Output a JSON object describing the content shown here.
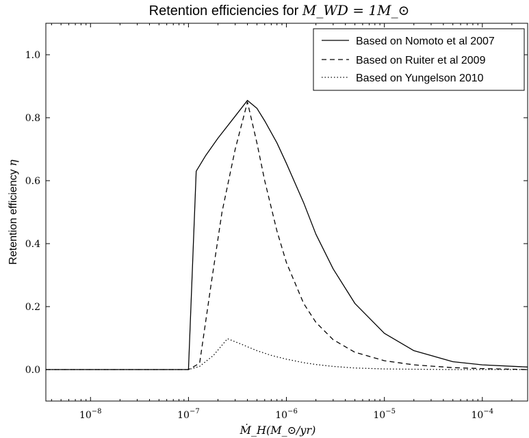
{
  "chart_data": {
    "type": "line",
    "title": "Retention efficiencies for M_WD = 1M_⊙",
    "title_prefix": "Retention efficiencies for ",
    "title_math": "M_WD = 1M_⊙",
    "xlabel": "Ṁ_H(M_⊙/yr)",
    "ylabel": "Retention efficiency η",
    "ylabel_text": "Retention efficiency ",
    "ylabel_math": "η",
    "x_scale": "log",
    "xlim": [
      3.5e-09,
      0.00029
    ],
    "ylim": [
      -0.1,
      1.1
    ],
    "x_ticks": [
      {
        "value": 1e-08,
        "label": "10−8"
      },
      {
        "value": 1e-07,
        "label": "10−7"
      },
      {
        "value": 1e-06,
        "label": "10−6"
      },
      {
        "value": 1e-05,
        "label": "10−5"
      },
      {
        "value": 0.0001,
        "label": "10−4"
      }
    ],
    "y_ticks": [
      {
        "value": 0.0,
        "label": "0.0"
      },
      {
        "value": 0.2,
        "label": "0.2"
      },
      {
        "value": 0.4,
        "label": "0.4"
      },
      {
        "value": 0.6,
        "label": "0.6"
      },
      {
        "value": 0.8,
        "label": "0.8"
      },
      {
        "value": 1.0,
        "label": "1.0"
      }
    ],
    "grid": false,
    "legend_position": "top-right",
    "series": [
      {
        "name": "Based on Nomoto et al 2007",
        "style": "solid",
        "x": [
          3.5e-09,
          1e-07,
          1.2e-07,
          1.5e-07,
          2e-07,
          3e-07,
          4e-07,
          5e-07,
          6e-07,
          8e-07,
          1e-06,
          1.5e-06,
          2e-06,
          3e-06,
          5e-06,
          1e-05,
          2e-05,
          5e-05,
          0.0001,
          0.00029
        ],
        "y": [
          0.0,
          0.0,
          0.63,
          0.68,
          0.735,
          0.805,
          0.855,
          0.83,
          0.79,
          0.72,
          0.655,
          0.53,
          0.43,
          0.32,
          0.21,
          0.115,
          0.06,
          0.025,
          0.015,
          0.008
        ]
      },
      {
        "name": "Based on Ruiter et al 2009",
        "style": "dashed",
        "x": [
          3.5e-09,
          1e-07,
          1.3e-07,
          1.7e-07,
          2.2e-07,
          3e-07,
          4e-07,
          5e-07,
          6e-07,
          8e-07,
          1e-06,
          1.5e-06,
          2e-06,
          3e-06,
          5e-06,
          1e-05,
          2e-05,
          5e-05,
          0.0001,
          0.00029
        ],
        "y": [
          0.0,
          0.0,
          0.02,
          0.27,
          0.5,
          0.7,
          0.85,
          0.72,
          0.6,
          0.44,
          0.34,
          0.21,
          0.15,
          0.095,
          0.055,
          0.028,
          0.015,
          0.006,
          0.003,
          0.0
        ]
      },
      {
        "name": "Based on Yungelson 2010",
        "style": "dotted",
        "x": [
          3.5e-09,
          1e-07,
          1.3e-07,
          1.8e-07,
          2.5e-07,
          3.5e-07,
          5e-07,
          7e-07,
          1e-06,
          1.5e-06,
          2e-06,
          3e-06,
          5e-06,
          1e-05,
          2e-05,
          5e-05,
          0.0001,
          0.00029
        ],
        "y": [
          0.0,
          0.0,
          0.01,
          0.045,
          0.098,
          0.08,
          0.06,
          0.045,
          0.033,
          0.022,
          0.016,
          0.01,
          0.005,
          0.002,
          0.001,
          0.0,
          0.0,
          0.0
        ]
      }
    ]
  }
}
